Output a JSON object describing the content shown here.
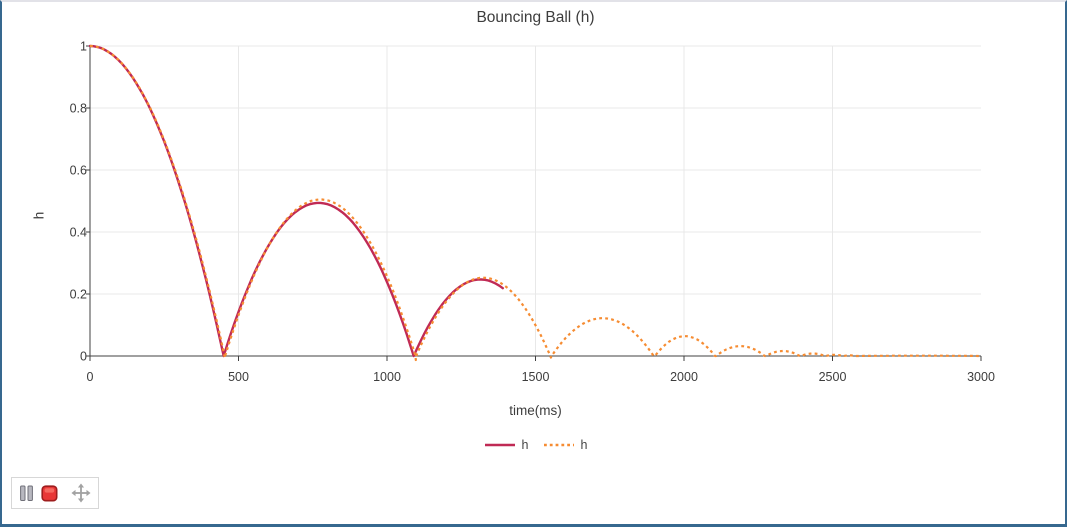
{
  "chart_data": {
    "type": "line",
    "title": "Bouncing Ball (h)",
    "xlabel": "time(ms)",
    "ylabel": "h",
    "xlim": [
      0,
      3000
    ],
    "ylim": [
      0,
      1
    ],
    "xticks": [
      0,
      500,
      1000,
      1500,
      2000,
      2500,
      3000
    ],
    "yticks": [
      0,
      0.2,
      0.4,
      0.6,
      0.8,
      1
    ],
    "grid": true,
    "legend_position": "bottom-center",
    "series": [
      {
        "name": "h",
        "color": "#c02a55",
        "line": "solid",
        "width": 2.4,
        "t_start": 0,
        "t_end": 1390,
        "bounce_times_ms": [
          450,
          1090
        ],
        "peak_heights": [
          1.0,
          0.494,
          0.247
        ],
        "arcs": [
          [
            -450,
            450,
            1.0
          ],
          [
            450,
            1090,
            0.494
          ],
          [
            1090,
            1538,
            0.247
          ]
        ]
      },
      {
        "name": "h",
        "color": "#f68c32",
        "line": "dashed",
        "width": 2.2,
        "t_start": 0,
        "t_end": 3000,
        "bounce_times_ms": [
          453,
          1096,
          1550,
          1898,
          2104,
          2272,
          2390,
          2474,
          2534
        ],
        "peak_heights": [
          1.0,
          0.505,
          0.2525,
          0.122,
          0.064,
          0.032,
          0.016,
          0.008,
          0.004
        ],
        "arcs": [
          [
            -453,
            453,
            1.0
          ],
          [
            455,
            1096,
            0.505
          ],
          [
            1098,
            1550,
            0.2525
          ],
          [
            1554,
            1898,
            0.122
          ],
          [
            1902,
            2104,
            0.064
          ],
          [
            2108,
            2272,
            0.032
          ],
          [
            2276,
            2390,
            0.016
          ],
          [
            2394,
            2474,
            0.008
          ],
          [
            2478,
            2534,
            0.004
          ],
          [
            2538,
            2578,
            0.002
          ],
          [
            2582,
            3000,
            0.001
          ]
        ],
        "dips": [
          [
            454,
            -0.006
          ],
          [
            1097,
            -0.013
          ],
          [
            1552,
            -0.005
          ]
        ]
      }
    ]
  },
  "toolbar": {
    "buttons": [
      {
        "id": "pause",
        "icon": "pause-icon"
      },
      {
        "id": "stop",
        "icon": "stop-icon"
      },
      {
        "id": "pan",
        "icon": "move-icon"
      }
    ]
  },
  "colors": {
    "window_border": "#36688f",
    "grid": "#e8e8e8",
    "axis": "#404040",
    "tick_text": "#3d3d3d",
    "stop_button_red": "#e83737"
  }
}
